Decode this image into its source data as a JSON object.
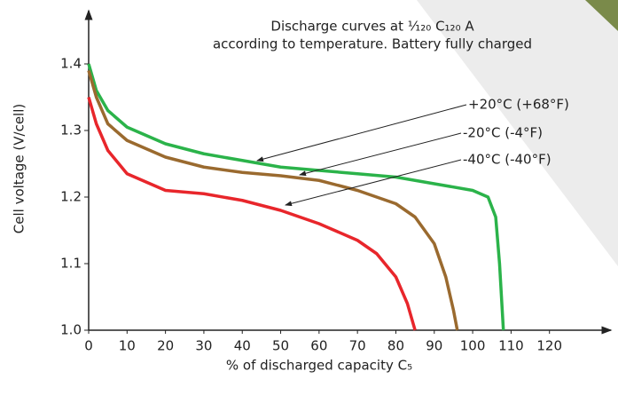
{
  "chart_data": {
    "type": "line",
    "title": [
      "Discharge curves at ¹⁄₁₂₀ C₁₂₀ A",
      "according to temperature. Battery fully charged"
    ],
    "x_label": "% of discharged capacity C₅",
    "y_label": "Cell voltage   (V/cell)",
    "xlim": [
      0,
      136
    ],
    "ylim": [
      1.0,
      1.48
    ],
    "xticks": [
      0,
      10,
      20,
      30,
      40,
      50,
      60,
      70,
      80,
      90,
      100,
      110,
      120
    ],
    "yticks": [
      {
        "value": 1.0,
        "label": "1.0"
      },
      1.1,
      1.2,
      1.3,
      1.4
    ],
    "grid": false,
    "series": [
      {
        "name": "+20°C  (+68°F)",
        "color": "#2bb34a",
        "x": [
          0,
          2,
          5,
          10,
          20,
          30,
          40,
          50,
          60,
          70,
          80,
          90,
          100,
          104,
          106,
          107,
          108
        ],
        "values": [
          1.4,
          1.36,
          1.33,
          1.305,
          1.28,
          1.265,
          1.255,
          1.245,
          1.24,
          1.235,
          1.23,
          1.22,
          1.21,
          1.2,
          1.17,
          1.1,
          1.0
        ]
      },
      {
        "name": "-20°C  (-4°F)",
        "color": "#9a6a2f",
        "x": [
          0,
          2,
          5,
          10,
          20,
          30,
          40,
          50,
          60,
          70,
          80,
          85,
          90,
          93,
          95,
          96
        ],
        "values": [
          1.39,
          1.35,
          1.31,
          1.285,
          1.26,
          1.245,
          1.237,
          1.232,
          1.225,
          1.21,
          1.19,
          1.17,
          1.13,
          1.08,
          1.03,
          1.0
        ]
      },
      {
        "name": "-40°C  (-40°F)",
        "color": "#e8262b",
        "x": [
          0,
          2,
          5,
          10,
          20,
          30,
          40,
          50,
          60,
          70,
          75,
          80,
          83,
          85
        ],
        "values": [
          1.35,
          1.31,
          1.27,
          1.235,
          1.21,
          1.205,
          1.195,
          1.18,
          1.16,
          1.135,
          1.115,
          1.08,
          1.04,
          1.0
        ]
      }
    ]
  }
}
